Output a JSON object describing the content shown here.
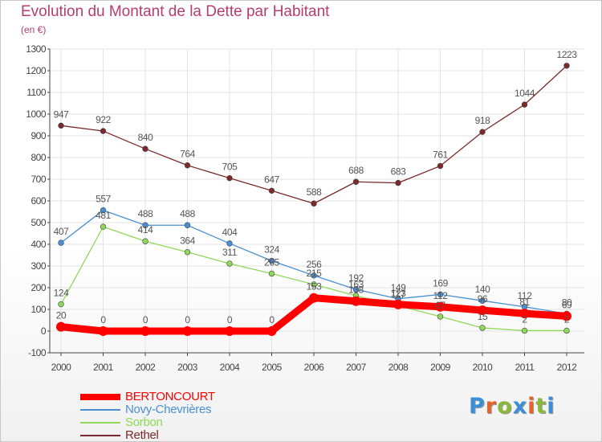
{
  "title": "Evolution du Montant de la Dette par Habitant",
  "subtitle": "(en €)",
  "logo": {
    "text": "Proxiti",
    "letter_colors": [
      "#3a8fd8",
      "#e8632a",
      "#8ab83a",
      "#3a8fd8",
      "#e8632a",
      "#8ab83a",
      "#3a8fd8"
    ]
  },
  "colors": {
    "title": "#b83c6e",
    "axis": "#444444",
    "grid": "#e3e3e3"
  },
  "chart_data": {
    "type": "line",
    "title": "Evolution du Montant de la Dette par Habitant",
    "subtitle": "(en €)",
    "xlabel": "",
    "ylabel": "",
    "x": [
      "2000",
      "2001",
      "2002",
      "2003",
      "2004",
      "2005",
      "2006",
      "2007",
      "2008",
      "2009",
      "2010",
      "2011",
      "2012"
    ],
    "ylim": [
      -100,
      1300
    ],
    "yticks": [
      -100,
      0,
      100,
      200,
      300,
      400,
      500,
      600,
      700,
      800,
      900,
      1000,
      1100,
      1200,
      1300
    ],
    "grid": true,
    "legend_position": "bottom-left",
    "series": [
      {
        "name": "BERTONCOURT",
        "color": "#ff0000",
        "values": [
          20,
          0,
          0,
          0,
          0,
          0,
          153,
          138,
          123,
          112,
          96,
          81,
          69
        ]
      },
      {
        "name": "Novy-Chevrières",
        "color": "#4a8fd4",
        "values": [
          407,
          557,
          488,
          488,
          404,
          324,
          256,
          192,
          149,
          169,
          140,
          112,
          80
        ]
      },
      {
        "name": "Sorbon",
        "color": "#8fd858",
        "values": [
          124,
          481,
          414,
          364,
          311,
          265,
          215,
          163,
          117,
          67,
          15,
          2,
          2
        ]
      },
      {
        "name": "Rethel",
        "color": "#7a2a2a",
        "values": [
          947,
          922,
          840,
          764,
          705,
          647,
          588,
          688,
          683,
          761,
          918,
          1044,
          1223
        ]
      }
    ],
    "annotations": [
      {
        "series": "BERTONCOURT",
        "labels": [
          "20",
          "0",
          "0",
          "0",
          "0",
          "0",
          "153",
          "138",
          "123",
          "112",
          "96",
          "81",
          "69"
        ]
      },
      {
        "series": "Novy-Chevrières",
        "labels": [
          "407",
          "557",
          "488",
          "488",
          "404",
          "324",
          "256",
          "192",
          "149",
          "169",
          "140",
          "112",
          "80"
        ]
      },
      {
        "series": "Sorbon",
        "labels": [
          "124",
          "481",
          "414",
          "364",
          "311",
          "265",
          "215",
          "163",
          "117",
          "67",
          "15",
          "2",
          "2"
        ]
      },
      {
        "series": "Rethel",
        "labels": [
          "947",
          "922",
          "840",
          "764",
          "705",
          "647",
          "588",
          "688",
          "683",
          "761",
          "918",
          "1044",
          "1223"
        ]
      }
    ]
  }
}
